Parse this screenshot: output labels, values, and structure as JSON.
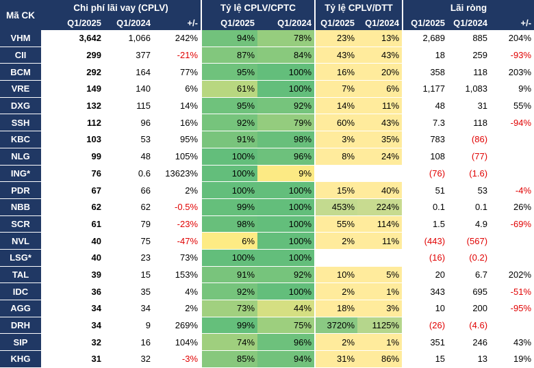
{
  "header": {
    "ma_ck": "Mã CK",
    "groups": [
      "Chi phí lãi vay (CPLV)",
      "Tỷ lệ CPLV/CPTC",
      "Tỷ lệ CPLV/DTT",
      "Lãi ròng"
    ],
    "subheaders": [
      "Q1/2025",
      "Q1/2024",
      "+/-",
      "Q1/2025",
      "Q1/2024",
      "Q1/2025",
      "Q1/2024",
      "Q1/2025",
      "Q1/2024",
      "+/-"
    ]
  },
  "colors": {
    "header_bg": "#203864",
    "negative": "#e00000",
    "cptc_high": "#63be7b",
    "cptc_low": "#ffeb84",
    "dtt_low": "#ffeb9c",
    "dtt_high": "#63be7b"
  },
  "rows": [
    {
      "ma": "VHM",
      "c1": "3,642",
      "c2": "1,066",
      "c3": "242%",
      "c4": "94%",
      "c4v": 94,
      "c5": "78%",
      "c5v": 78,
      "c6": "23%",
      "c6v": 23,
      "c7": "13%",
      "c7v": 13,
      "c8": "2,689",
      "c9": "885",
      "c10": "204%"
    },
    {
      "ma": "CII",
      "c1": "299",
      "c2": "377",
      "c3": "-21%",
      "c4": "87%",
      "c4v": 87,
      "c5": "84%",
      "c5v": 84,
      "c6": "43%",
      "c6v": 43,
      "c7": "43%",
      "c7v": 43,
      "c8": "18",
      "c9": "259",
      "c10": "-93%"
    },
    {
      "ma": "BCM",
      "c1": "292",
      "c2": "164",
      "c3": "77%",
      "c4": "95%",
      "c4v": 95,
      "c5": "100%",
      "c5v": 100,
      "c6": "16%",
      "c6v": 16,
      "c7": "20%",
      "c7v": 20,
      "c8": "358",
      "c9": "118",
      "c10": "203%"
    },
    {
      "ma": "VRE",
      "c1": "149",
      "c2": "140",
      "c3": "6%",
      "c4": "61%",
      "c4v": 61,
      "c5": "100%",
      "c5v": 100,
      "c6": "7%",
      "c6v": 7,
      "c7": "6%",
      "c7v": 6,
      "c8": "1,177",
      "c9": "1,083",
      "c10": "9%"
    },
    {
      "ma": "DXG",
      "c1": "132",
      "c2": "115",
      "c3": "14%",
      "c4": "95%",
      "c4v": 95,
      "c5": "92%",
      "c5v": 92,
      "c6": "14%",
      "c6v": 14,
      "c7": "11%",
      "c7v": 11,
      "c8": "48",
      "c9": "31",
      "c10": "55%"
    },
    {
      "ma": "SSH",
      "c1": "112",
      "c2": "96",
      "c3": "16%",
      "c4": "92%",
      "c4v": 92,
      "c5": "79%",
      "c5v": 79,
      "c6": "60%",
      "c6v": 60,
      "c7": "43%",
      "c7v": 43,
      "c8": "7.3",
      "c9": "118",
      "c10": "-94%"
    },
    {
      "ma": "KBC",
      "c1": "103",
      "c2": "53",
      "c3": "95%",
      "c4": "91%",
      "c4v": 91,
      "c5": "98%",
      "c5v": 98,
      "c6": "3%",
      "c6v": 3,
      "c7": "35%",
      "c7v": 35,
      "c8": "783",
      "c9": "(86)",
      "c10": ""
    },
    {
      "ma": "NLG",
      "c1": "99",
      "c2": "48",
      "c3": "105%",
      "c4": "100%",
      "c4v": 100,
      "c5": "96%",
      "c5v": 96,
      "c6": "8%",
      "c6v": 8,
      "c7": "24%",
      "c7v": 24,
      "c8": "108",
      "c9": "(77)",
      "c10": ""
    },
    {
      "ma": "ING*",
      "c1": "76",
      "c2": "0.6",
      "c3": "13623%",
      "c4": "100%",
      "c4v": 100,
      "c5": "9%",
      "c5v": 9,
      "c6": "",
      "c6v": null,
      "c7": "",
      "c7v": null,
      "c8": "(76)",
      "c9": "(1.6)",
      "c10": ""
    },
    {
      "ma": "PDR",
      "c1": "67",
      "c2": "66",
      "c3": "2%",
      "c4": "100%",
      "c4v": 100,
      "c5": "100%",
      "c5v": 100,
      "c6": "15%",
      "c6v": 15,
      "c7": "40%",
      "c7v": 40,
      "c8": "51",
      "c9": "53",
      "c10": "-4%"
    },
    {
      "ma": "NBB",
      "c1": "62",
      "c2": "62",
      "c3": "-0.5%",
      "c4": "99%",
      "c4v": 99,
      "c5": "100%",
      "c5v": 100,
      "c6": "453%",
      "c6v": 453,
      "c7": "224%",
      "c7v": 224,
      "c8": "0.1",
      "c9": "0.1",
      "c10": "26%"
    },
    {
      "ma": "SCR",
      "c1": "61",
      "c2": "79",
      "c3": "-23%",
      "c4": "98%",
      "c4v": 98,
      "c5": "100%",
      "c5v": 100,
      "c6": "55%",
      "c6v": 55,
      "c7": "114%",
      "c7v": 114,
      "c8": "1.5",
      "c9": "4.9",
      "c10": "-69%"
    },
    {
      "ma": "NVL",
      "c1": "40",
      "c2": "75",
      "c3": "-47%",
      "c4": "6%",
      "c4v": 6,
      "c5": "100%",
      "c5v": 100,
      "c6": "2%",
      "c6v": 2,
      "c7": "11%",
      "c7v": 11,
      "c8": "(443)",
      "c9": "(567)",
      "c10": ""
    },
    {
      "ma": "LSG*",
      "c1": "40",
      "c2": "23",
      "c3": "73%",
      "c4": "100%",
      "c4v": 100,
      "c5": "100%",
      "c5v": 100,
      "c6": "",
      "c6v": null,
      "c7": "",
      "c7v": null,
      "c8": "(16)",
      "c9": "(0.2)",
      "c10": ""
    },
    {
      "ma": "TAL",
      "c1": "39",
      "c2": "15",
      "c3": "153%",
      "c4": "91%",
      "c4v": 91,
      "c5": "92%",
      "c5v": 92,
      "c6": "10%",
      "c6v": 10,
      "c7": "5%",
      "c7v": 5,
      "c8": "20",
      "c9": "6.7",
      "c10": "202%"
    },
    {
      "ma": "IDC",
      "c1": "36",
      "c2": "35",
      "c3": "4%",
      "c4": "92%",
      "c4v": 92,
      "c5": "100%",
      "c5v": 100,
      "c6": "2%",
      "c6v": 2,
      "c7": "1%",
      "c7v": 1,
      "c8": "343",
      "c9": "695",
      "c10": "-51%"
    },
    {
      "ma": "AGG",
      "c1": "34",
      "c2": "34",
      "c3": "2%",
      "c4": "73%",
      "c4v": 73,
      "c5": "44%",
      "c5v": 44,
      "c6": "18%",
      "c6v": 18,
      "c7": "3%",
      "c7v": 3,
      "c8": "10",
      "c9": "200",
      "c10": "-95%"
    },
    {
      "ma": "DRH",
      "c1": "34",
      "c2": "9",
      "c3": "269%",
      "c4": "99%",
      "c4v": 99,
      "c5": "75%",
      "c5v": 75,
      "c6": "3720%",
      "c6v": 3720,
      "c7": "1125%",
      "c7v": 1125,
      "c8": "(26)",
      "c9": "(4.6)",
      "c10": ""
    },
    {
      "ma": "SIP",
      "c1": "32",
      "c2": "16",
      "c3": "104%",
      "c4": "74%",
      "c4v": 74,
      "c5": "96%",
      "c5v": 96,
      "c6": "2%",
      "c6v": 2,
      "c7": "1%",
      "c7v": 1,
      "c8": "351",
      "c9": "246",
      "c10": "43%"
    },
    {
      "ma": "KHG",
      "c1": "31",
      "c2": "32",
      "c3": "-3%",
      "c4": "85%",
      "c4v": 85,
      "c5": "94%",
      "c5v": 94,
      "c6": "31%",
      "c6v": 31,
      "c7": "86%",
      "c7v": 86,
      "c8": "15",
      "c9": "13",
      "c10": "19%"
    }
  ]
}
